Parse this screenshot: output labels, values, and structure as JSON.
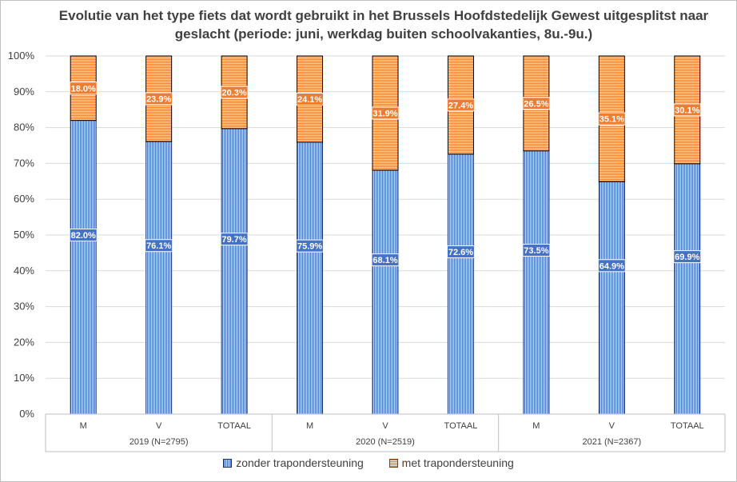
{
  "chart_data": {
    "type": "bar",
    "stacked": true,
    "title": "Evolutie van het type fiets dat wordt gebruikt in het Brussels Hoofdstedelijk Gewest uitgesplitst naar geslacht (periode: juni, werkdag buiten schoolvakanties, 8u.-9u.)",
    "categories": [
      "M",
      "V",
      "TOTAAL",
      "M",
      "V",
      "TOTAAL",
      "M",
      "V",
      "TOTAAL"
    ],
    "groups": [
      {
        "label": "2019 (N=2795)",
        "size": 3
      },
      {
        "label": "2020 (N=2519)",
        "size": 3
      },
      {
        "label": "2021 (N=2367)",
        "size": 3
      }
    ],
    "series": [
      {
        "name": "zonder trapondersteuning",
        "color": "#4472c4",
        "values": [
          82.0,
          76.1,
          79.7,
          75.9,
          68.1,
          72.6,
          73.5,
          64.9,
          69.9
        ],
        "labels": [
          "82.0%",
          "76.1%",
          "79.7%",
          "75.9%",
          "68.1%",
          "72.6%",
          "73.5%",
          "64.9%",
          "69.9%"
        ]
      },
      {
        "name": "met trapondersteuning",
        "color": "#ed7d31",
        "values": [
          18.0,
          23.9,
          20.3,
          24.1,
          31.9,
          27.4,
          26.5,
          35.1,
          30.1
        ],
        "labels": [
          "18.0%",
          "23.9%",
          "20.3%",
          "24.1%",
          "31.9%",
          "27.4%",
          "26.5%",
          "35.1%",
          "30.1%"
        ]
      }
    ],
    "yticks": [
      "0%",
      "10%",
      "20%",
      "30%",
      "40%",
      "50%",
      "60%",
      "70%",
      "80%",
      "90%",
      "100%"
    ],
    "ylim": [
      0,
      100
    ],
    "xlabel": "",
    "ylabel": "",
    "grid": true,
    "legend": "bottom"
  }
}
